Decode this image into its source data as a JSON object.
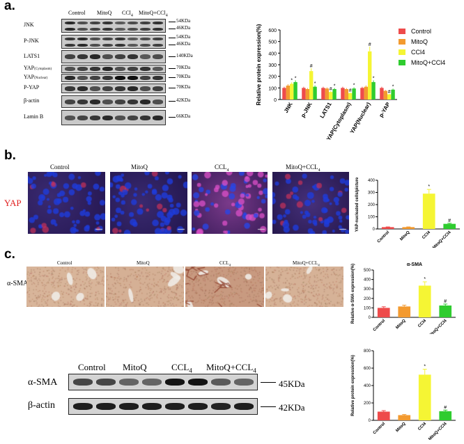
{
  "panel_a": {
    "letter": "a.",
    "groups": [
      "Control",
      "MitoQ",
      "CCl4",
      "MitoQ+CCl4"
    ],
    "blot_rows": [
      {
        "label": "JNK",
        "label_sub": "",
        "mw": [
          "54KDa",
          "46KDa"
        ]
      },
      {
        "label": "P-JNK",
        "label_sub": "",
        "mw": [
          "54KDa",
          "46KDa"
        ]
      },
      {
        "label": "LATS1",
        "label_sub": "",
        "mw": [
          "140KDa"
        ]
      },
      {
        "label": "YAP",
        "label_sub": "(Cytoplasm)",
        "mw": [
          "70KDa"
        ]
      },
      {
        "label": "YAP",
        "label_sub": "(Nuclear)",
        "mw": [
          "70KDa"
        ]
      },
      {
        "label": "P-YAP",
        "label_sub": "",
        "mw": [
          "70KDa"
        ]
      },
      {
        "label": "β-actin",
        "label_sub": "",
        "mw": [
          "42KDa"
        ]
      },
      {
        "label": "Lamin B",
        "label_sub": "",
        "mw": [
          "66KDa"
        ]
      }
    ]
  },
  "chart_data": [
    {
      "type": "bar",
      "ylabel": "Relative protein expression(%)",
      "ylim": [
        0,
        600
      ],
      "yticks": [
        "0",
        "100",
        "200",
        "300",
        "400",
        "500",
        "600"
      ],
      "categories": [
        "JNK",
        "p-JNK",
        "LATS1",
        "YAP(Cytoplasm)",
        "YAP(Nuclear)",
        "p-YAP"
      ],
      "series": [
        {
          "name": "Control",
          "color": "#ee4b4b",
          "values": [
            100,
            100,
            100,
            100,
            100,
            100
          ]
        },
        {
          "name": "MitoQ",
          "color": "#f39a2f",
          "values": [
            120,
            90,
            95,
            90,
            110,
            75
          ]
        },
        {
          "name": "CCl4",
          "color": "#f5f534",
          "values": [
            135,
            245,
            65,
            55,
            415,
            45
          ]
        },
        {
          "name": "MitoQ+CCl4",
          "color": "#2fcc2f",
          "values": [
            150,
            110,
            90,
            95,
            150,
            85
          ]
        }
      ],
      "annotations": [
        "*",
        "*",
        "#",
        "*",
        "#",
        "*",
        "#",
        "*",
        "#",
        "*",
        "#",
        "*",
        "#"
      ],
      "legend": "top-right"
    },
    {
      "type": "bar",
      "ylabel": "YAP-nucleated cells/picture",
      "ylim": [
        0,
        400
      ],
      "yticks": [
        "0",
        "100",
        "200",
        "300",
        "400"
      ],
      "categories": [
        "Control",
        "MitoQ",
        "CCl4",
        "MitoQ+CCl4"
      ],
      "values": [
        15,
        15,
        290,
        42
      ],
      "colors": [
        "#ee4b4b",
        "#f39a2f",
        "#f5f534",
        "#2fcc2f"
      ],
      "annotations": [
        "",
        "",
        "*",
        "#"
      ]
    },
    {
      "type": "bar",
      "title": "α-SMA",
      "ylabel": "Relative α-SMA expression(%)",
      "ylim": [
        0,
        500
      ],
      "yticks": [
        "0",
        "100",
        "200",
        "300",
        "400",
        "500"
      ],
      "categories": [
        "Control",
        "MitoQ",
        "CCl4",
        "MitoQ+CCl4"
      ],
      "values": [
        100,
        115,
        335,
        125
      ],
      "colors": [
        "#ee4b4b",
        "#f39a2f",
        "#f5f534",
        "#2fcc2f"
      ],
      "annotations": [
        "",
        "",
        "*",
        "#"
      ]
    },
    {
      "type": "bar",
      "ylabel": "Relative protein expression(%)",
      "ylim": [
        0,
        800
      ],
      "yticks": [
        "0",
        "200",
        "400",
        "600",
        "800"
      ],
      "categories": [
        "Control",
        "MitoQ",
        "CCl4",
        "MitoQ+CCl4"
      ],
      "values": [
        100,
        60,
        525,
        105
      ],
      "colors": [
        "#ee4b4b",
        "#f39a2f",
        "#f5f534",
        "#2fcc2f"
      ],
      "annotations": [
        "",
        "",
        "*",
        "#"
      ]
    }
  ],
  "panel_b": {
    "letter": "b.",
    "row_label": "YAP",
    "groups": [
      "Control",
      "MitoQ",
      "CCL4",
      "MitoQ+CCL4"
    ]
  },
  "panel_c": {
    "letter": "c.",
    "row_label": "α-SMA",
    "groups": [
      "Control",
      "MitoQ",
      "CCL4",
      "MitoQ+CCL4"
    ],
    "wb_groups": [
      "Control",
      "MitoQ",
      "CCL4",
      "MitoQ+CCL4"
    ],
    "wb_rows": [
      {
        "label": "α-SMA",
        "mw": "45KDa"
      },
      {
        "label": "β-actin",
        "mw": "42KDa"
      }
    ]
  }
}
